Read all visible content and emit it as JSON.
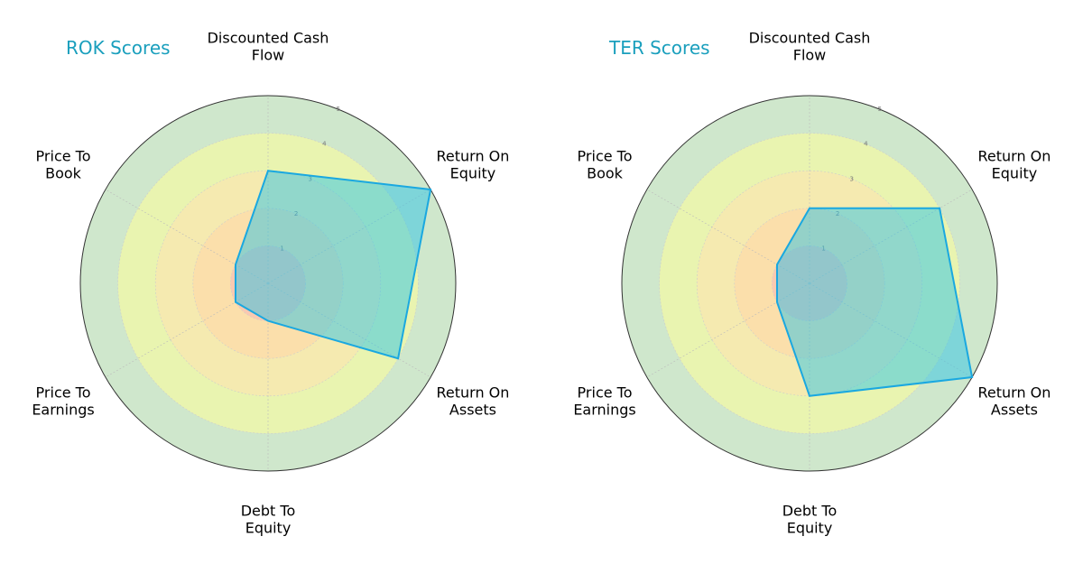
{
  "colors": {
    "title": "#1a9fbd",
    "polygon_fill": "#2ec4e6",
    "polygon_stroke": "#1aa8e0",
    "band_colors": [
      "#f7b6b6",
      "#ffd6a8",
      "#ffe2b0",
      "#ffff99",
      "#a7d3a3"
    ],
    "outer_ring": "#333333"
  },
  "chart_data": [
    {
      "type": "radar",
      "title": "ROK Scores",
      "axes": [
        "Discounted Cash Flow",
        "Return On Equity",
        "Return On Assets",
        "Debt To Equity",
        "Price To Earnings",
        "Price To Book"
      ],
      "axis_label_lines": [
        [
          "Discounted Cash",
          "Flow"
        ],
        [
          "Return On",
          "Equity"
        ],
        [
          "Return On",
          "Assets"
        ],
        [
          "Debt To",
          "Equity"
        ],
        [
          "Price To",
          "Earnings"
        ],
        [
          "Price To",
          "Book"
        ]
      ],
      "values": [
        3,
        5,
        4,
        1,
        1,
        1
      ],
      "rticks": [
        "1",
        "2",
        "3",
        "4",
        "5"
      ],
      "rlim": [
        0,
        5
      ],
      "grid": true
    },
    {
      "type": "radar",
      "title": "TER Scores",
      "axes": [
        "Discounted Cash Flow",
        "Return On Equity",
        "Return On Assets",
        "Debt To Equity",
        "Price To Earnings",
        "Price To Book"
      ],
      "axis_label_lines": [
        [
          "Discounted Cash",
          "Flow"
        ],
        [
          "Return On",
          "Equity"
        ],
        [
          "Return On",
          "Assets"
        ],
        [
          "Debt To",
          "Equity"
        ],
        [
          "Price To",
          "Earnings"
        ],
        [
          "Price To",
          "Book"
        ]
      ],
      "values": [
        2,
        4,
        5,
        3,
        1,
        1
      ],
      "rticks": [
        "1",
        "2",
        "3",
        "4",
        "5"
      ],
      "rlim": [
        0,
        5
      ],
      "grid": true
    }
  ]
}
